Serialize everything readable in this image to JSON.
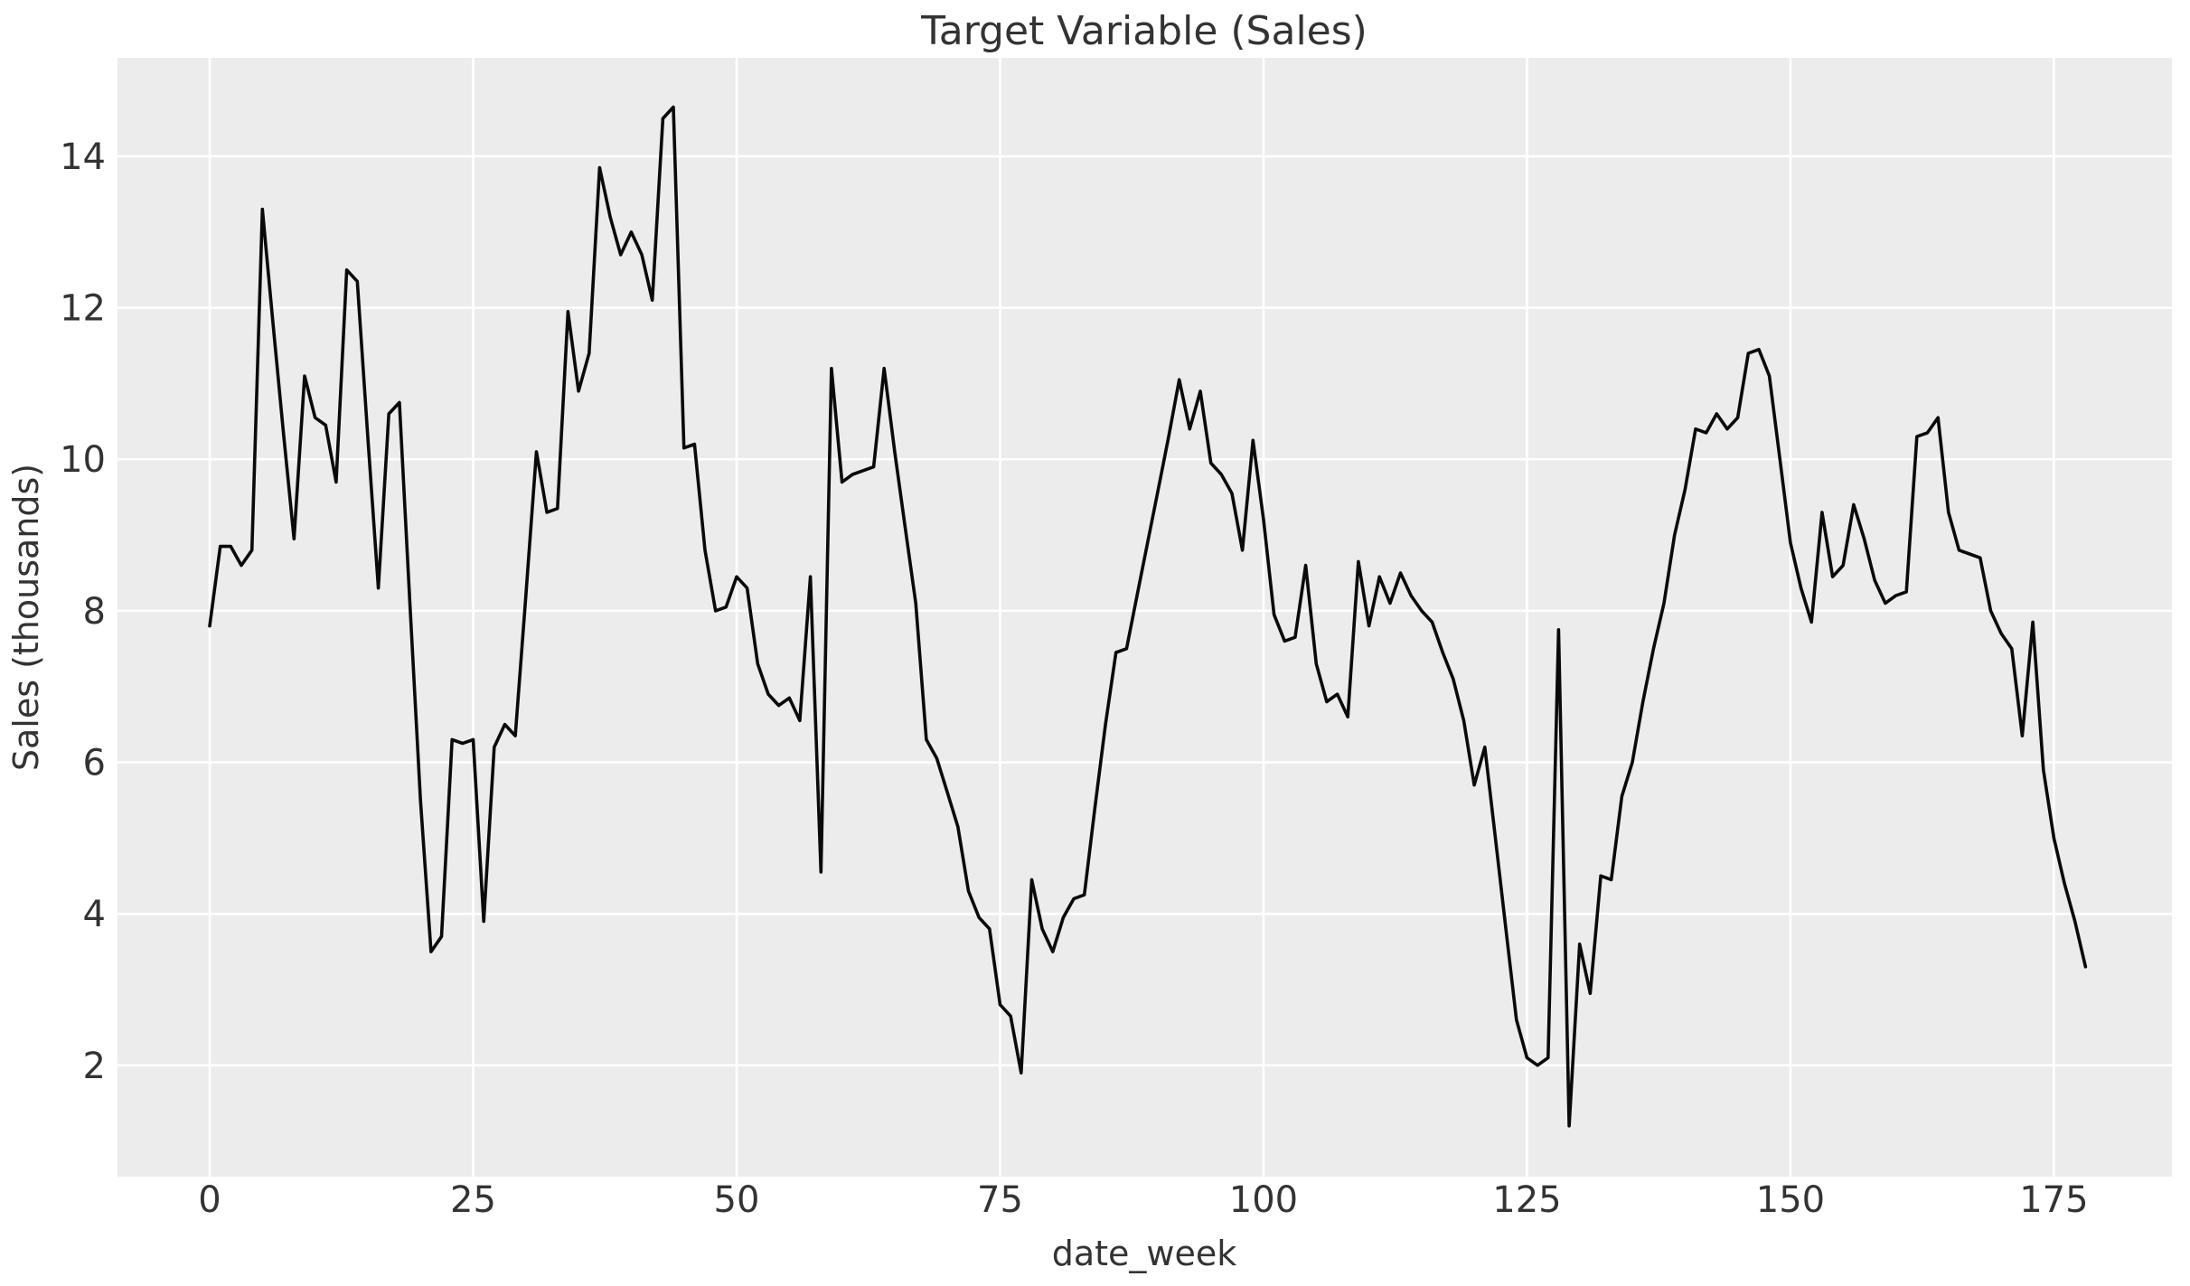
{
  "chart_data": {
    "type": "line",
    "title": "Target Variable (Sales)",
    "xlabel": "date_week",
    "ylabel": "Sales (thousands)",
    "grid": true,
    "legend": "none",
    "background_color": "#ECECEC",
    "grid_color": "#FFFFFF",
    "line_color": "#0A0A0A",
    "text_color": "#333333",
    "xlim": [
      -8.75,
      186.2
    ],
    "ylim": [
      0.53,
      15.3
    ],
    "xticks": [
      0,
      25,
      50,
      75,
      100,
      125,
      150,
      175
    ],
    "yticks": [
      2,
      4,
      6,
      8,
      10,
      12,
      14
    ],
    "x_start": 0,
    "x_step": 1,
    "x": "weeks 0 through 178",
    "values": [
      7.8,
      8.85,
      8.85,
      8.6,
      8.8,
      13.3,
      11.8,
      10.35,
      8.95,
      11.1,
      10.55,
      10.45,
      9.7,
      12.5,
      12.35,
      10.3,
      8.3,
      10.6,
      10.75,
      8.1,
      5.5,
      3.5,
      3.7,
      6.3,
      6.25,
      6.3,
      3.9,
      6.2,
      6.5,
      6.35,
      8.2,
      10.1,
      9.3,
      9.35,
      11.95,
      10.9,
      11.4,
      13.85,
      13.2,
      12.7,
      13.0,
      12.7,
      12.1,
      14.5,
      14.65,
      10.15,
      10.2,
      8.8,
      8.0,
      8.05,
      8.45,
      8.3,
      7.3,
      6.9,
      6.75,
      6.85,
      6.55,
      8.45,
      4.55,
      11.2,
      9.7,
      9.8,
      9.85,
      9.9,
      11.2,
      10.1,
      9.1,
      8.1,
      6.3,
      6.05,
      5.6,
      5.15,
      4.3,
      3.95,
      3.8,
      2.8,
      2.65,
      1.9,
      4.45,
      3.8,
      3.5,
      3.95,
      4.2,
      4.25,
      5.4,
      6.5,
      7.45,
      7.5,
      8.2,
      8.9,
      9.6,
      10.3,
      11.05,
      10.4,
      10.9,
      9.95,
      9.8,
      9.55,
      8.8,
      10.25,
      9.2,
      7.95,
      7.6,
      7.65,
      8.6,
      7.3,
      6.8,
      6.9,
      6.6,
      8.65,
      7.8,
      8.45,
      8.1,
      8.5,
      8.2,
      8.0,
      7.85,
      7.45,
      7.1,
      6.55,
      5.7,
      6.2,
      5.0,
      3.8,
      2.6,
      2.1,
      2.0,
      2.1,
      7.75,
      1.2,
      3.6,
      2.95,
      4.5,
      4.45,
      5.55,
      6.0,
      6.8,
      7.5,
      8.1,
      9.0,
      9.6,
      10.4,
      10.35,
      10.6,
      10.4,
      10.55,
      11.4,
      11.45,
      11.1,
      10.0,
      8.9,
      8.3,
      7.85,
      9.3,
      8.45,
      8.6,
      9.4,
      8.95,
      8.4,
      8.1,
      8.2,
      8.25,
      10.3,
      10.35,
      10.55,
      9.3,
      8.8,
      8.75,
      8.7,
      8.0,
      7.7,
      7.5,
      6.35,
      7.85,
      5.9,
      5.0,
      4.4,
      3.9,
      3.3
    ]
  }
}
